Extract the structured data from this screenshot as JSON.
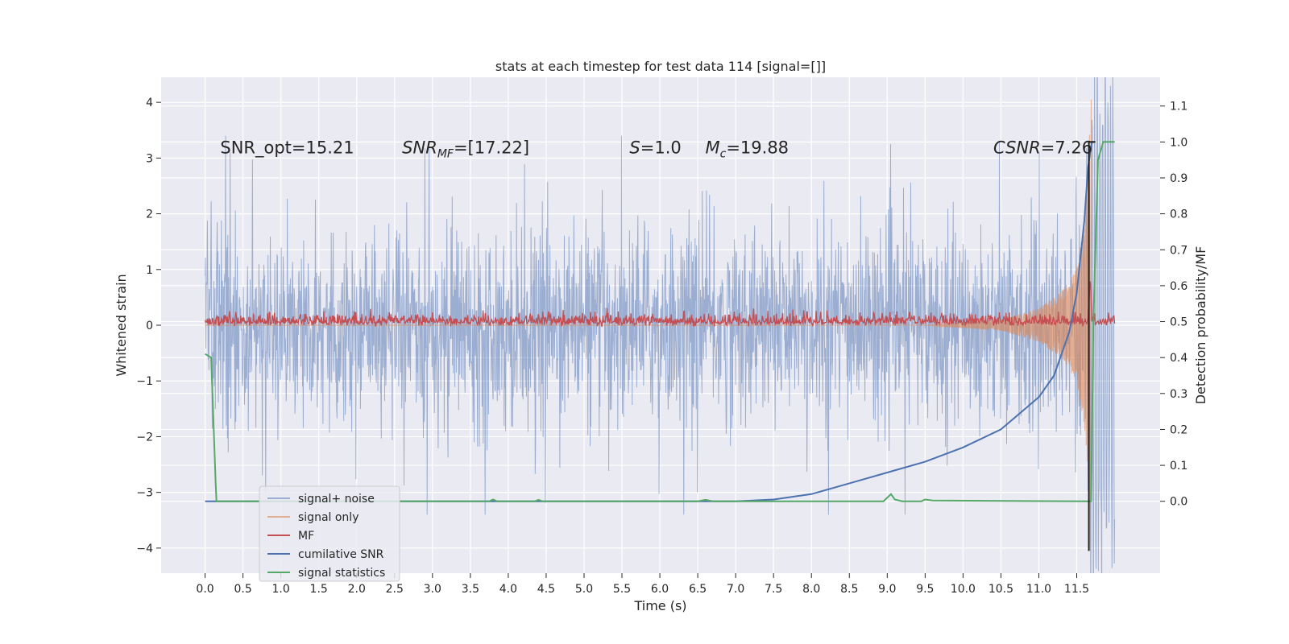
{
  "chart_data": {
    "type": "line",
    "title": "stats at each timestep for test data 114 [signal=[]]",
    "xlabel": "Time (s)",
    "ylabel": "Whitened strain",
    "ylabel_right": "Detection probability/MF",
    "xlim": [
      -0.58,
      12.6
    ],
    "ylim": [
      -4.45,
      4.45
    ],
    "ylim_right": [
      -0.2,
      1.18
    ],
    "x_ticks": [
      "0.0",
      "0.5",
      "1.0",
      "1.5",
      "2.0",
      "2.5",
      "3.0",
      "3.5",
      "4.0",
      "4.5",
      "5.0",
      "5.5",
      "6.0",
      "6.5",
      "7.0",
      "7.5",
      "8.0",
      "8.5",
      "9.0",
      "9.5",
      "10.0",
      "10.5",
      "11.0",
      "11.5"
    ],
    "y_ticks": [
      "4",
      "3",
      "2",
      "1",
      "0",
      "−1",
      "−2",
      "−3",
      "−4"
    ],
    "y_ticks_right": [
      "1.1",
      "1.0",
      "0.9",
      "0.8",
      "0.7",
      "0.6",
      "0.5",
      "0.4",
      "0.3",
      "0.2",
      "0.1",
      "0.0"
    ],
    "grid": true,
    "legend_position": "lower-left",
    "annotations": [
      {
        "text": "SNR_opt=15.21",
        "x": 0.2,
        "y": 3.2
      },
      {
        "text": "SNR_MF=[17.22]",
        "x": 2.6,
        "y": 3.2
      },
      {
        "text": "S=1.0",
        "x": 5.6,
        "y": 3.2
      },
      {
        "text": "M_c=19.88",
        "x": 6.6,
        "y": 3.2
      },
      {
        "text": "CSNR=7.26",
        "x": 10.4,
        "y": 3.2
      }
    ],
    "series": [
      {
        "name": "signal+ noise",
        "color": "#4c72b0",
        "axis": "left",
        "description_values": {
          "x_range": [
            0.0,
            12.0
          ],
          "typical_envelope": [
            -1.3,
            1.3
          ],
          "max_spikes": [
            3.7,
            -3.5
          ]
        }
      },
      {
        "name": "signal only",
        "color": "#dd8452",
        "axis": "left",
        "points": [
          [
            0.0,
            0.0
          ],
          [
            9.5,
            0.0
          ],
          [
            10.0,
            0.05
          ],
          [
            10.5,
            0.1
          ],
          [
            11.0,
            0.3
          ],
          [
            11.3,
            0.6
          ],
          [
            11.5,
            1.0
          ],
          [
            11.6,
            1.8
          ],
          [
            11.65,
            2.6
          ],
          [
            11.68,
            4.1
          ]
        ]
      },
      {
        "name": "MF",
        "color": "#c44e52",
        "axis": "right",
        "points": [
          [
            0.0,
            0.5
          ],
          [
            11.65,
            0.5
          ],
          [
            11.68,
            0.62
          ],
          [
            11.7,
            0.5
          ],
          [
            12.0,
            0.5
          ]
        ]
      },
      {
        "name": "cumilative SNR",
        "color": "#4c72b0",
        "axis": "right",
        "points": [
          [
            0.0,
            0.0
          ],
          [
            6.5,
            0.0
          ],
          [
            7.0,
            0.0
          ],
          [
            7.5,
            0.005
          ],
          [
            8.0,
            0.02
          ],
          [
            8.5,
            0.05
          ],
          [
            9.0,
            0.08
          ],
          [
            9.5,
            0.11
          ],
          [
            10.0,
            0.15
          ],
          [
            10.5,
            0.2
          ],
          [
            11.0,
            0.29
          ],
          [
            11.2,
            0.35
          ],
          [
            11.4,
            0.47
          ],
          [
            11.5,
            0.58
          ],
          [
            11.6,
            0.78
          ],
          [
            11.65,
            0.93
          ],
          [
            11.7,
            1.0
          ],
          [
            11.75,
            1.0
          ]
        ]
      },
      {
        "name": "signal statistics",
        "color": "#55a868",
        "axis": "right",
        "points": [
          [
            0.0,
            0.41
          ],
          [
            0.08,
            0.4
          ],
          [
            0.14,
            0.05
          ],
          [
            0.15,
            0.0
          ],
          [
            3.75,
            0.0
          ],
          [
            3.8,
            0.005
          ],
          [
            3.85,
            0.0
          ],
          [
            4.35,
            0.0
          ],
          [
            4.4,
            0.004
          ],
          [
            4.45,
            0.0
          ],
          [
            6.5,
            0.0
          ],
          [
            6.6,
            0.004
          ],
          [
            6.7,
            0.0
          ],
          [
            8.95,
            0.0
          ],
          [
            9.05,
            0.02
          ],
          [
            9.1,
            0.005
          ],
          [
            9.2,
            0.0
          ],
          [
            9.45,
            0.0
          ],
          [
            9.5,
            0.005
          ],
          [
            9.6,
            0.002
          ],
          [
            11.69,
            0.0
          ],
          [
            11.72,
            0.5
          ],
          [
            11.78,
            0.95
          ],
          [
            11.85,
            1.0
          ],
          [
            12.0,
            1.0
          ]
        ]
      }
    ]
  }
}
